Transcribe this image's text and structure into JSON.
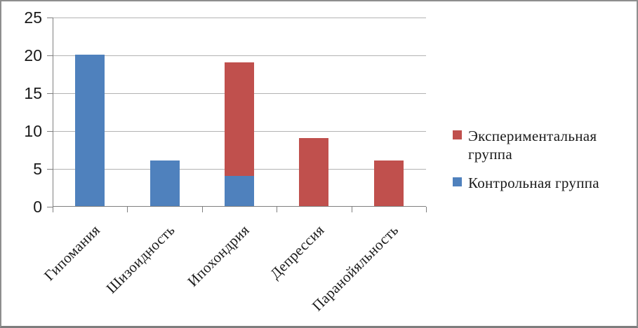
{
  "chart_data": {
    "type": "bar",
    "subtype": "overlapping-columns-blue-in-front",
    "title": "",
    "categories": [
      "Гипомания",
      "Шизоидность",
      "Ипохондрия",
      "Депрессия",
      "Паранойяльность"
    ],
    "series": [
      {
        "name": "Экспериментальная группа",
        "color": "#c0504d",
        "values": [
          0,
          0,
          19,
          9,
          6
        ]
      },
      {
        "name": "Контрольная группа",
        "color": "#4f81bd",
        "values": [
          20,
          6,
          4,
          0,
          0
        ]
      }
    ],
    "ylim": [
      0,
      25
    ],
    "yticks": [
      0,
      5,
      10,
      15,
      20,
      25
    ],
    "grid": true,
    "legend_position": "right",
    "category_label_rotation_deg": -45
  },
  "colors": {
    "experimental": "#c0504d",
    "control": "#4f81bd",
    "gridline": "#b3b3b3",
    "axis": "#7f7f7f",
    "text": "#1a1a1a",
    "frame_border": "#8e8e8e",
    "background": "#ffffff"
  }
}
